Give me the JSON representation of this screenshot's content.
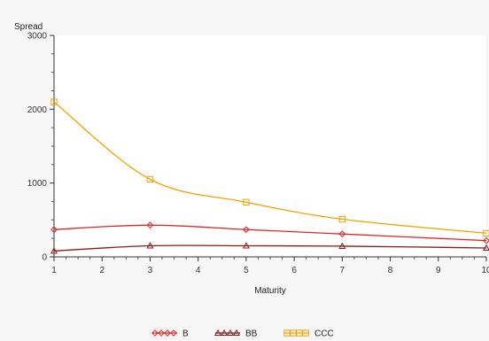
{
  "chart_data": {
    "type": "line",
    "title": "",
    "xlabel": "Maturity",
    "ylabel": "Spread",
    "x": [
      1,
      3,
      5,
      7,
      10
    ],
    "xlim": [
      1,
      10
    ],
    "ylim": [
      0,
      3000
    ],
    "xticks": [
      "1",
      "2",
      "3",
      "4",
      "5",
      "6",
      "7",
      "8",
      "9",
      "10"
    ],
    "yticks": [
      "0",
      "1000",
      "2000",
      "3000"
    ],
    "grid": false,
    "legend_position": "bottom",
    "series": [
      {
        "name": "B",
        "color": "#e02828",
        "marker": "diamond",
        "values": [
          370,
          430,
          370,
          310,
          220
        ]
      },
      {
        "name": "BB",
        "color": "#8b1a1a",
        "marker": "triangle",
        "values": [
          80,
          150,
          150,
          145,
          120
        ]
      },
      {
        "name": "CCC",
        "color": "#f0a400",
        "marker": "square",
        "values": [
          2100,
          1050,
          740,
          510,
          320
        ]
      }
    ]
  }
}
